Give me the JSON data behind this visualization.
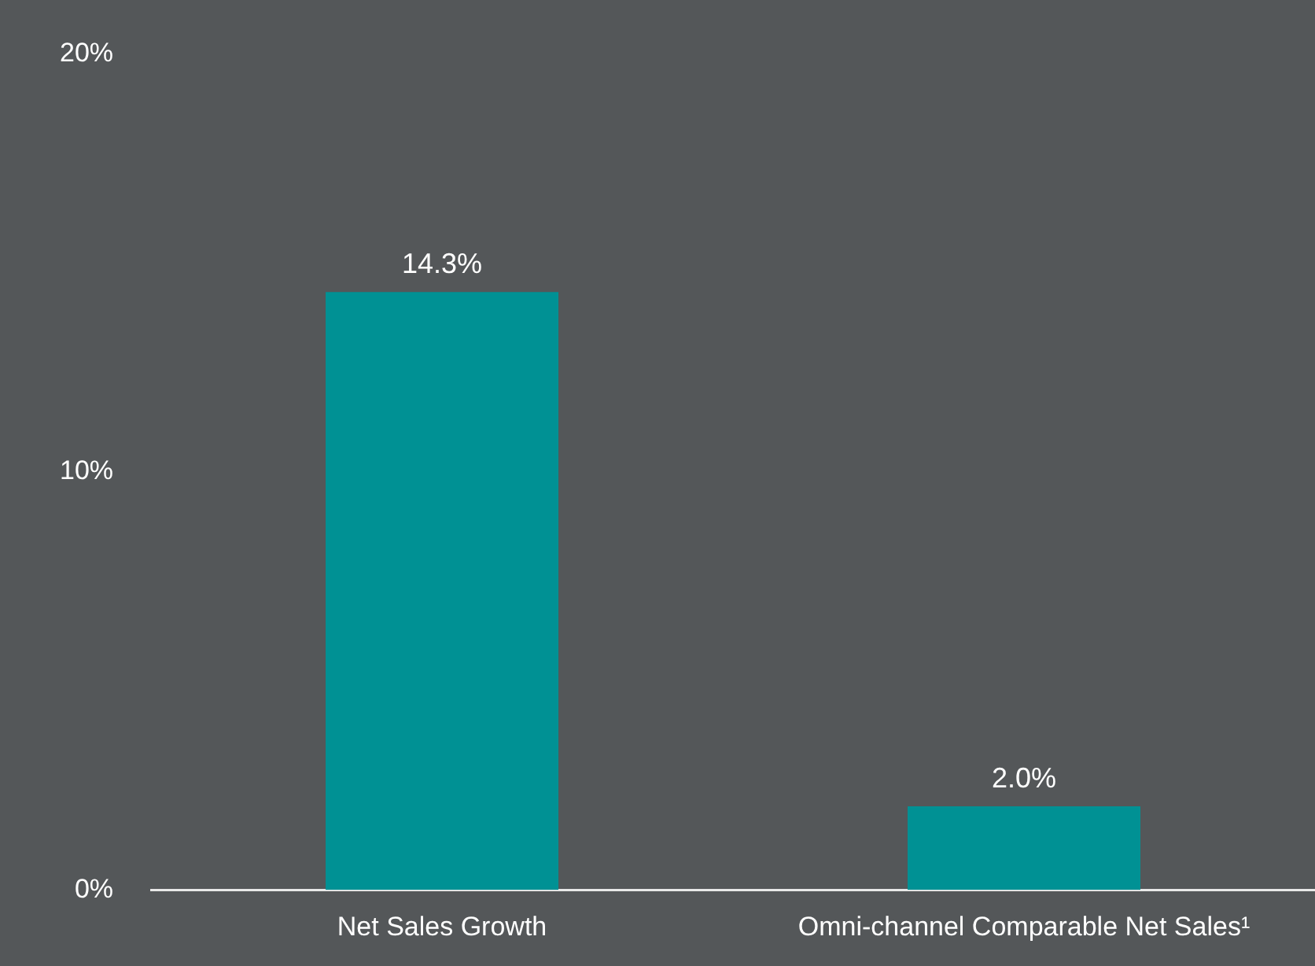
{
  "chart_data": {
    "type": "bar",
    "categories": [
      "Net Sales Growth",
      "Omni-channel Comparable Net Sales¹"
    ],
    "values": [
      14.3,
      2.0
    ],
    "color": "#009194",
    "value_labels": [
      "14.3%",
      "2.0%"
    ],
    "ylim": [
      0,
      20
    ],
    "yticks": [
      {
        "value": 0,
        "label": "0%"
      },
      {
        "value": 10,
        "label": "10%"
      },
      {
        "value": 20,
        "label": "20%"
      }
    ],
    "grid": false,
    "legend": false
  }
}
